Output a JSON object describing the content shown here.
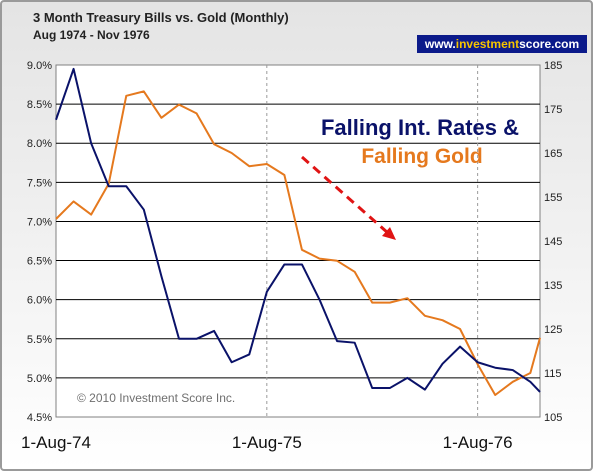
{
  "header": {
    "title": "3 Month Treasury Bills vs. Gold (Monthly)",
    "subtitle": "Aug 1974 - Nov 1976",
    "url_prefix": "www.",
    "url_accent": "investment",
    "url_suffix": "score.com"
  },
  "annotation": {
    "line1": "Falling Int. Rates &",
    "line2": "Falling Gold",
    "copyright": "© 2010 Investment Score Inc."
  },
  "colors": {
    "rates": "#0a1269",
    "gold": "#e5791e",
    "arrow": "#e01414",
    "plot_bg": "#ffffff",
    "grid": "#000000"
  },
  "chart_data": {
    "type": "line",
    "x": [
      "Aug-74",
      "Sep-74",
      "Oct-74",
      "Nov-74",
      "Dec-74",
      "Jan-75",
      "Feb-75",
      "Mar-75",
      "Apr-75",
      "May-75",
      "Jun-75",
      "Jul-75",
      "Aug-75",
      "Sep-75",
      "Oct-75",
      "Nov-75",
      "Dec-75",
      "Jan-76",
      "Feb-76",
      "Mar-76",
      "Apr-76",
      "May-76",
      "Jun-76",
      "Jul-76",
      "Aug-76",
      "Sep-76",
      "Oct-76",
      "Nov-76"
    ],
    "x_tick_labels": [
      "1-Aug-74",
      "1-Aug-75",
      "1-Aug-76"
    ],
    "x_tick_positions": [
      0,
      12,
      24
    ],
    "y_left": {
      "ticks": [
        "9.0%",
        "8.5%",
        "8.0%",
        "7.5%",
        "7.0%",
        "6.5%",
        "6.0%",
        "5.5%",
        "5.0%",
        "4.5%"
      ],
      "range": [
        4.5,
        9.0
      ]
    },
    "y_right": {
      "ticks": [
        "185",
        "175",
        "165",
        "155",
        "145",
        "135",
        "125",
        "115",
        "105"
      ],
      "range": [
        105,
        185
      ]
    },
    "series": [
      {
        "axis": "left",
        "values": [
          8.3,
          8.95,
          8.0,
          7.45,
          7.45,
          7.15,
          6.3,
          5.5,
          5.5,
          5.6,
          5.2,
          5.3,
          6.1,
          6.45,
          6.45,
          6.0,
          5.47,
          5.45,
          4.87,
          4.87,
          5.0,
          4.85,
          5.18,
          5.4,
          5.2,
          5.13,
          5.1,
          4.95
        ]
      },
      {
        "axis": "right",
        "values": [
          150,
          154,
          151,
          158,
          178,
          179,
          173,
          176,
          174,
          167,
          165,
          162,
          162.5,
          160,
          143,
          141,
          140.5,
          138,
          131,
          131,
          132,
          128,
          127,
          125,
          117,
          110,
          113,
          115
        ]
      }
    ],
    "series_tail": {
      "rates_last": 4.82,
      "gold_last": 123
    },
    "grid": true
  }
}
